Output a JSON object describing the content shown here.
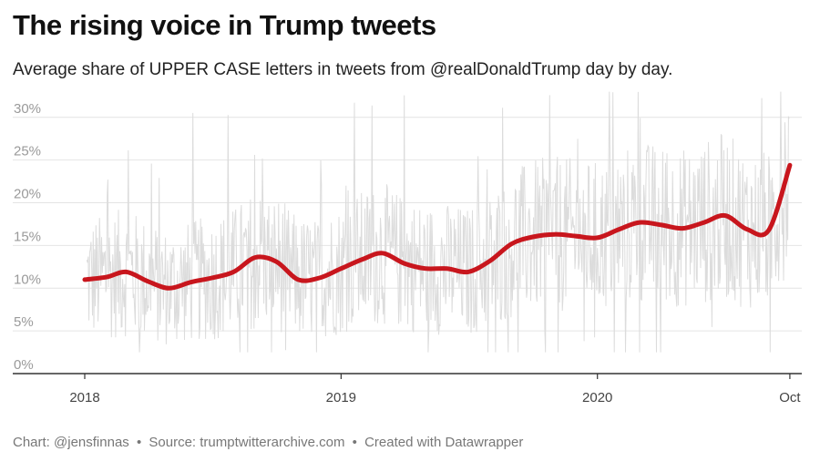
{
  "title": "The rising voice in Trump tweets",
  "subtitle": "Average share of UPPER CASE letters in tweets from @realDonaldTrump day by day.",
  "footer": {
    "chart_by": "Chart: @jensfinnas",
    "separator": "•",
    "source": "Source: trumptwitterarchive.com",
    "created_with": "Created with Datawrapper"
  },
  "colors": {
    "trend_line": "#c8161d",
    "daily_series": "#dcdcdc",
    "grid": "#e4e4e4",
    "axis": "#333333"
  },
  "chart_data": {
    "type": "line",
    "title": "The rising voice in Trump tweets",
    "subtitle": "Average share of UPPER CASE letters in tweets from @realDonaldTrump day by day.",
    "xlabel": "",
    "ylabel": "",
    "x_range": [
      "2018-01-01",
      "2020-10-05"
    ],
    "ylim": [
      0,
      32
    ],
    "y_ticks": [
      0,
      5,
      10,
      15,
      20,
      25,
      30
    ],
    "y_tick_labels": [
      "0%",
      "5%",
      "10%",
      "15%",
      "20%",
      "25%",
      "30%"
    ],
    "x_ticks": [
      "2018-01-01",
      "2019-01-01",
      "2020-01-01",
      "2020-10-01"
    ],
    "x_tick_labels": [
      "2018",
      "2019",
      "2020",
      "Oct"
    ],
    "grid": true,
    "legend": "none",
    "series": [
      {
        "style": "smoothed trend",
        "x": [
          "2018-01-01",
          "2018-02-01",
          "2018-03-01",
          "2018-04-01",
          "2018-05-01",
          "2018-06-01",
          "2018-07-01",
          "2018-08-01",
          "2018-09-01",
          "2018-10-01",
          "2018-11-01",
          "2018-12-01",
          "2019-01-01",
          "2019-02-01",
          "2019-03-01",
          "2019-04-01",
          "2019-05-01",
          "2019-06-01",
          "2019-07-01",
          "2019-08-01",
          "2019-09-01",
          "2019-10-01",
          "2019-11-01",
          "2019-12-01",
          "2020-01-01",
          "2020-02-01",
          "2020-03-01",
          "2020-04-01",
          "2020-05-01",
          "2020-06-01",
          "2020-07-01",
          "2020-08-01",
          "2020-09-01",
          "2020-10-01"
        ],
        "values": [
          11.0,
          11.3,
          11.9,
          10.8,
          10.0,
          10.7,
          11.2,
          11.9,
          13.6,
          13.1,
          11.0,
          11.2,
          12.3,
          13.4,
          14.1,
          12.9,
          12.3,
          12.3,
          11.9,
          13.2,
          15.2,
          16.0,
          16.3,
          16.1,
          15.9,
          16.9,
          17.7,
          17.4,
          17.0,
          17.7,
          18.5,
          16.9,
          16.8,
          24.4
        ]
      },
      {
        "style": "daily values",
        "x_range": [
          "2018-01-01",
          "2020-10-05"
        ],
        "y_range_observed": [
          2.5,
          33
        ]
      }
    ]
  }
}
